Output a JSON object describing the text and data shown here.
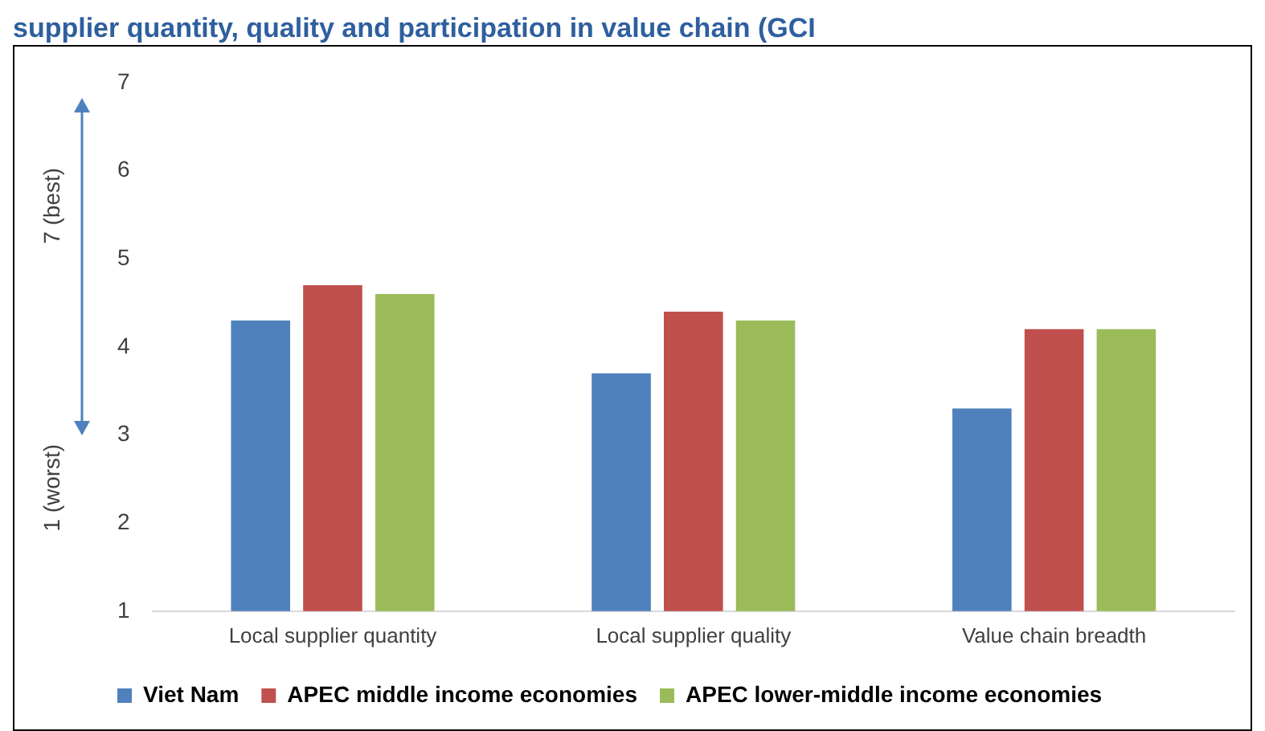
{
  "chart_data": {
    "type": "bar",
    "title": "supplier quantity, quality and participation in value chain (GCI",
    "categories": [
      "Local supplier quantity",
      "Local supplier quality",
      "Value chain breadth"
    ],
    "series": [
      {
        "name": "Viet Nam",
        "color": "#4f81bd",
        "values": [
          4.3,
          3.7,
          3.3
        ]
      },
      {
        "name": "APEC middle income economies",
        "color": "#c0504d",
        "values": [
          4.7,
          4.4,
          4.2
        ]
      },
      {
        "name": "APEC lower-middle income economies",
        "color": "#9bbb59",
        "values": [
          4.6,
          4.3,
          4.2
        ]
      }
    ],
    "ylim": [
      1,
      7
    ],
    "yticks": [
      1,
      2,
      3,
      4,
      5,
      6,
      7
    ],
    "grid": false,
    "legend": "bottom",
    "annotations": [
      "7 (best)",
      "1 (worst)"
    ]
  }
}
